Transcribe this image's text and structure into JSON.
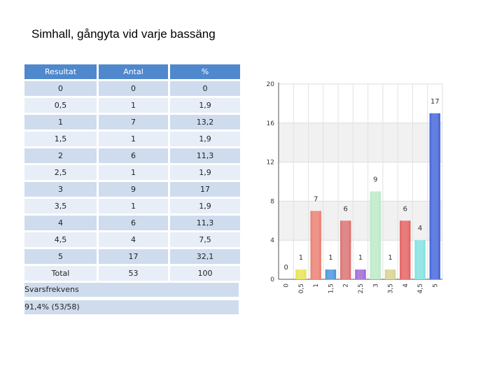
{
  "title": "Simhall, gångyta vid varje bassäng",
  "table": {
    "headers": [
      "Resultat",
      "Antal",
      "%"
    ],
    "rows": [
      [
        "0",
        "0",
        "0"
      ],
      [
        "0,5",
        "1",
        "1,9"
      ],
      [
        "1",
        "7",
        "13,2"
      ],
      [
        "1,5",
        "1",
        "1,9"
      ],
      [
        "2",
        "6",
        "11,3"
      ],
      [
        "2,5",
        "1",
        "1,9"
      ],
      [
        "3",
        "9",
        "17"
      ],
      [
        "3,5",
        "1",
        "1,9"
      ],
      [
        "4",
        "6",
        "11,3"
      ],
      [
        "4,5",
        "4",
        "7,5"
      ],
      [
        "5",
        "17",
        "32,1"
      ]
    ],
    "total": [
      "Total",
      "53",
      "100"
    ]
  },
  "response": {
    "label": "Svarsfrekvens",
    "value": "91,4% (53/58)"
  },
  "chart_data": {
    "type": "bar",
    "categories": [
      "0",
      "0,5",
      "1",
      "1,5",
      "2",
      "2,5",
      "3",
      "3,5",
      "4",
      "4,5",
      "5"
    ],
    "values": [
      0,
      1,
      7,
      1,
      6,
      1,
      9,
      1,
      6,
      4,
      17
    ],
    "yticks": [
      "0",
      "4",
      "8",
      "12",
      "16",
      "20"
    ],
    "ylim": [
      0,
      20
    ],
    "colors": [
      "#bbbbbb",
      "#e6e24a",
      "#e9786a",
      "#3f8ed8",
      "#d86a6a",
      "#9b5fd6",
      "#b9e8c4",
      "#d6d08a",
      "#e25a5a",
      "#7ce0de",
      "#3b5ed8"
    ],
    "band_color": "#f1f1f1"
  }
}
